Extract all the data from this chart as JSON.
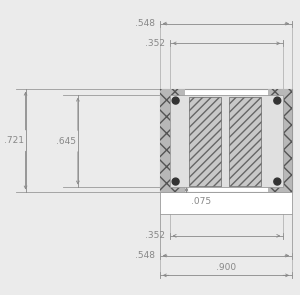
{
  "bg_color": "#ebebeb",
  "line_color": "#999999",
  "dim_color": "#888888",
  "text_color": "#888888",
  "dark_color": "#333333",
  "dim_548_top_text": ".548",
  "dim_352_top_text": ".352",
  "dim_721_text": ".721",
  "dim_645_text": ".645",
  "dim_075_text": ".075",
  "dim_352_bot_text": ".352",
  "dim_548_bot_text": ".548",
  "dim_900_text": ".900",
  "figsize": [
    3.0,
    2.95
  ],
  "dpi": 100
}
